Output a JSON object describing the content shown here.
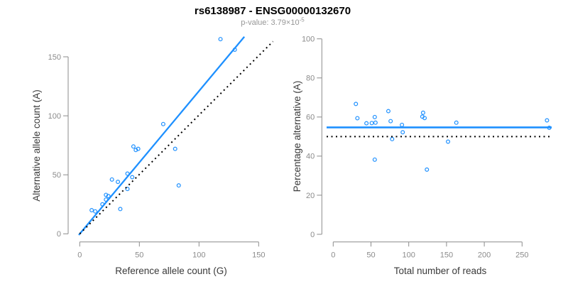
{
  "figure": {
    "title": "rs6138987 - ENSG00000132670",
    "subtitle": {
      "prefix": "p-value: 3.79×10",
      "exponent": "-5"
    }
  },
  "colors": {
    "accent_blue": "#1E90FF",
    "axis_gray": "#8B8B8B",
    "axis_title": "#3A3A3A",
    "title_black": "#000000",
    "subtitle_gray": "#969696",
    "reference_black": "#000000",
    "background": "#FFFFFF"
  },
  "chart_data": [
    {
      "id": "allele-counts-scatter",
      "type": "scatter",
      "xlabel": "Reference allele count (G)",
      "ylabel": "Alternative allele count (A)",
      "xlim": [
        0,
        150
      ],
      "ylim": [
        0,
        150
      ],
      "xticks": [
        0,
        50,
        100,
        150
      ],
      "yticks": [
        0,
        50,
        100,
        150
      ],
      "grid": false,
      "points": [
        [
          10,
          20
        ],
        [
          13,
          19
        ],
        [
          19,
          25
        ],
        [
          22,
          29
        ],
        [
          24,
          32
        ],
        [
          22,
          33
        ],
        [
          34,
          21
        ],
        [
          27,
          46
        ],
        [
          32,
          44
        ],
        [
          40,
          38
        ],
        [
          40,
          51
        ],
        [
          44,
          48
        ],
        [
          45,
          74
        ],
        [
          47,
          71
        ],
        [
          49,
          72
        ],
        [
          83,
          41
        ],
        [
          80,
          72
        ],
        [
          70,
          93
        ],
        [
          118,
          165
        ],
        [
          130,
          156
        ]
      ],
      "lines": [
        {
          "name": "fitted-ratio-line",
          "kind": "segment",
          "x1": -0.8,
          "y1": -1,
          "x2": 138,
          "y2": 167,
          "style": "solid",
          "color": "accent_blue",
          "width": 2.3
        },
        {
          "name": "identity-line",
          "kind": "segment",
          "x1": 0,
          "y1": 0,
          "x2": 162,
          "y2": 163,
          "style": "dotted",
          "color": "reference_black",
          "width": 2
        }
      ]
    },
    {
      "id": "percentage-scatter",
      "type": "scatter",
      "xlabel": "Total number of reads",
      "ylabel": "Percentage alternative (A)",
      "xlim": [
        0,
        250
      ],
      "ylim": [
        0,
        100
      ],
      "xticks": [
        0,
        50,
        100,
        150,
        200,
        250
      ],
      "yticks": [
        0,
        20,
        40,
        60,
        80,
        100
      ],
      "grid": false,
      "points": [
        [
          30,
          66.7
        ],
        [
          32,
          59.4
        ],
        [
          44,
          56.8
        ],
        [
          51,
          56.9
        ],
        [
          56,
          57.1
        ],
        [
          55,
          60
        ],
        [
          55,
          38.2
        ],
        [
          73,
          63
        ],
        [
          76,
          57.9
        ],
        [
          78,
          48.7
        ],
        [
          91,
          56
        ],
        [
          92,
          52.2
        ],
        [
          119,
          62.2
        ],
        [
          118,
          60.2
        ],
        [
          121,
          59.5
        ],
        [
          124,
          33.1
        ],
        [
          152,
          47.4
        ],
        [
          163,
          57.1
        ],
        [
          283,
          58.3
        ],
        [
          286,
          54.5
        ]
      ],
      "lines": [
        {
          "name": "mean-percentage-line",
          "kind": "hline",
          "y": 54.7,
          "style": "solid",
          "color": "accent_blue",
          "width": 2.6
        },
        {
          "name": "fifty-percent-line",
          "kind": "hline",
          "y": 50,
          "style": "dotted",
          "color": "reference_black",
          "width": 2
        }
      ]
    }
  ]
}
